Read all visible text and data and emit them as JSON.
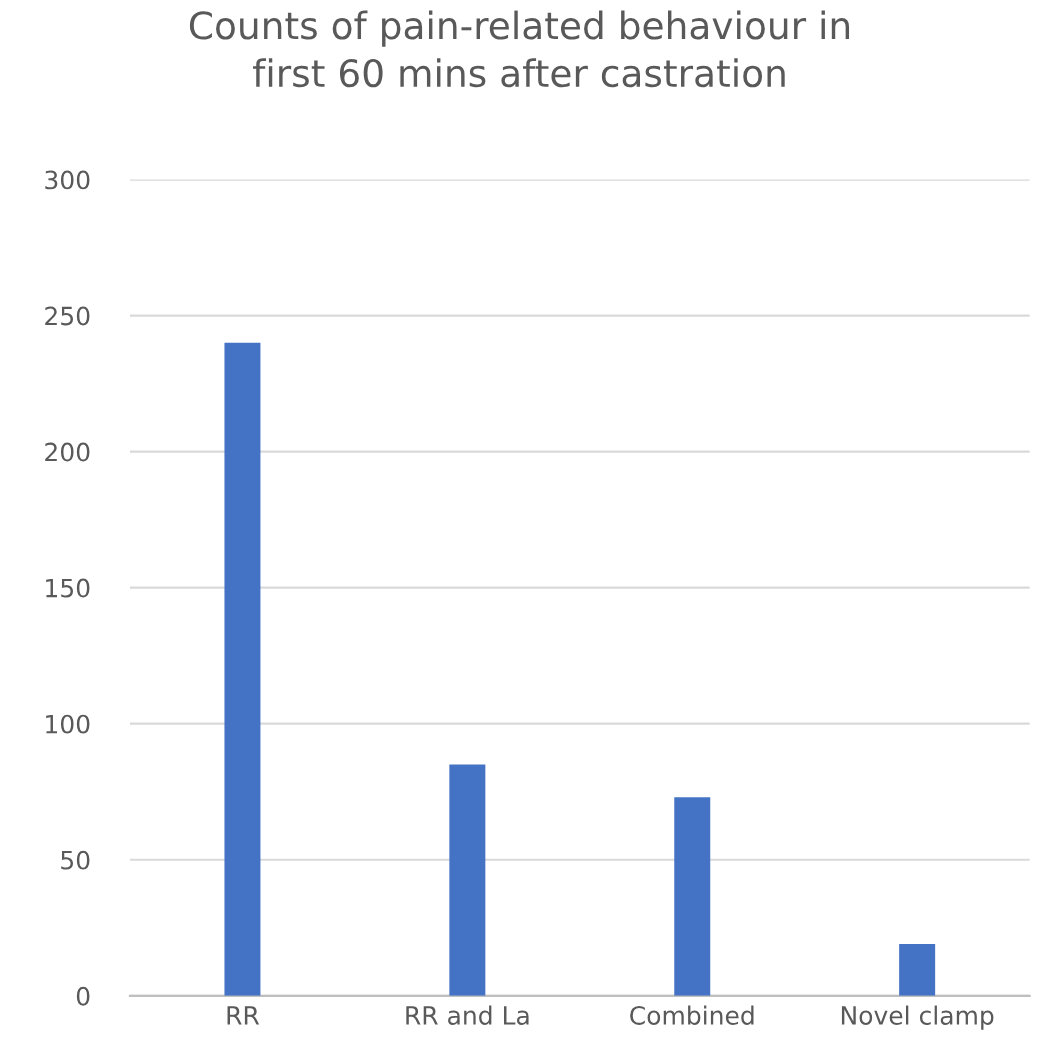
{
  "chart_data": {
    "type": "bar",
    "title": "Counts of pain-related behaviour in\nfirst 60 mins after castration",
    "categories": [
      "RR",
      "RR and La",
      "Combined",
      "Novel clamp"
    ],
    "values": [
      240,
      85,
      73,
      19
    ],
    "color": "#4472c4",
    "ylim": [
      0,
      300
    ],
    "yticks": [
      0,
      50,
      100,
      150,
      200,
      250,
      300
    ],
    "grid": "y",
    "legend": false
  }
}
